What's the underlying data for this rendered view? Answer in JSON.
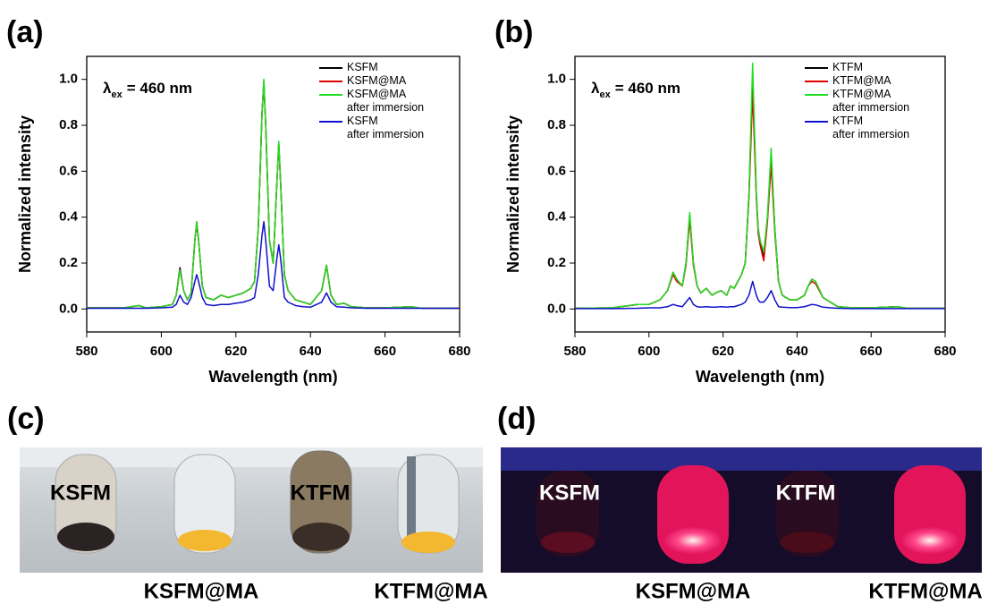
{
  "chart_data": [
    {
      "type": "line",
      "panel": "(a)",
      "x_label": "Wavelength (nm)",
      "y_label": "Normalized intensity",
      "annotation": {
        "symbol": "λ",
        "subscript": "ex",
        "text": "= 460 nm"
      },
      "legend": "upper right",
      "xlim": [
        580,
        680
      ],
      "ylim": [
        -0.1,
        1.1
      ],
      "xticks": [
        580,
        600,
        620,
        640,
        660,
        680
      ],
      "yticks": [
        {
          "value": 0,
          "label": "0.0"
        },
        0.2,
        0.4,
        0.6,
        0.8,
        {
          "value": 1,
          "label": "1.0"
        }
      ],
      "x": [
        580,
        590,
        594,
        596,
        600,
        603,
        604,
        605,
        606,
        607,
        608,
        609,
        609.5,
        610,
        611,
        612,
        614,
        616,
        618,
        620,
        622,
        624,
        625,
        626,
        627,
        627.5,
        628,
        629,
        630,
        631,
        631.5,
        632,
        633,
        634,
        636,
        638,
        640,
        643,
        644.3,
        645.5,
        647,
        649,
        651,
        655,
        660,
        667,
        670,
        680
      ],
      "series": [
        {
          "name": "KSFM",
          "color": "#000000",
          "values": [
            0.005,
            0.005,
            0.015,
            0.005,
            0.01,
            0.02,
            0.06,
            0.18,
            0.08,
            0.04,
            0.07,
            0.3,
            0.37,
            0.3,
            0.1,
            0.05,
            0.04,
            0.06,
            0.05,
            0.06,
            0.07,
            0.09,
            0.12,
            0.35,
            0.85,
            0.99,
            0.8,
            0.3,
            0.2,
            0.55,
            0.72,
            0.55,
            0.15,
            0.08,
            0.04,
            0.03,
            0.02,
            0.08,
            0.19,
            0.06,
            0.02,
            0.025,
            0.01,
            0.005,
            0.005,
            0.01,
            0.003,
            0.003
          ]
        },
        {
          "name": "KSFM@MA",
          "color": "#e00000",
          "values": [
            0.005,
            0.005,
            0.015,
            0.005,
            0.01,
            0.02,
            0.06,
            0.17,
            0.08,
            0.04,
            0.07,
            0.3,
            0.38,
            0.3,
            0.1,
            0.05,
            0.04,
            0.06,
            0.05,
            0.06,
            0.07,
            0.09,
            0.12,
            0.35,
            0.85,
            0.99,
            0.8,
            0.3,
            0.2,
            0.55,
            0.72,
            0.55,
            0.15,
            0.08,
            0.04,
            0.03,
            0.02,
            0.08,
            0.19,
            0.06,
            0.02,
            0.025,
            0.01,
            0.005,
            0.005,
            0.01,
            0.003,
            0.003
          ]
        },
        {
          "name": "KSFM@MA\nafter immersion",
          "color": "#22dd22",
          "values": [
            0.005,
            0.005,
            0.015,
            0.005,
            0.01,
            0.02,
            0.06,
            0.17,
            0.08,
            0.04,
            0.07,
            0.3,
            0.38,
            0.3,
            0.1,
            0.05,
            0.04,
            0.06,
            0.05,
            0.06,
            0.07,
            0.09,
            0.12,
            0.35,
            0.85,
            1.0,
            0.8,
            0.3,
            0.2,
            0.55,
            0.73,
            0.55,
            0.15,
            0.08,
            0.04,
            0.03,
            0.02,
            0.08,
            0.19,
            0.06,
            0.02,
            0.025,
            0.01,
            0.005,
            0.005,
            0.01,
            0.003,
            0.003
          ]
        },
        {
          "name": "KSFM\nafter immersion",
          "color": "#1010cc",
          "values": [
            0.003,
            0.003,
            0.003,
            0.003,
            0.005,
            0.008,
            0.02,
            0.06,
            0.03,
            0.02,
            0.05,
            0.12,
            0.15,
            0.12,
            0.05,
            0.02,
            0.015,
            0.02,
            0.02,
            0.025,
            0.03,
            0.04,
            0.05,
            0.15,
            0.32,
            0.38,
            0.3,
            0.1,
            0.08,
            0.22,
            0.28,
            0.22,
            0.05,
            0.03,
            0.015,
            0.01,
            0.008,
            0.03,
            0.07,
            0.03,
            0.01,
            0.008,
            0.005,
            0.003,
            0.003,
            0.003,
            0.003,
            0.003
          ]
        }
      ]
    },
    {
      "type": "line",
      "panel": "(b)",
      "x_label": "Wavelength (nm)",
      "y_label": "Normalized intensity",
      "annotation": {
        "symbol": "λ",
        "subscript": "ex",
        "text": "= 460 nm"
      },
      "legend": "upper right",
      "xlim": [
        580,
        680
      ],
      "ylim": [
        -0.1,
        1.1
      ],
      "xticks": [
        580,
        600,
        620,
        640,
        660,
        680
      ],
      "yticks": [
        {
          "value": 0,
          "label": "0.0"
        },
        0.2,
        0.4,
        0.6,
        0.8,
        {
          "value": 1,
          "label": "1.0"
        }
      ],
      "x": [
        580,
        590,
        597,
        600,
        603,
        605,
        606.5,
        607.5,
        609,
        610,
        611,
        612,
        613,
        614,
        615.5,
        617,
        618,
        619.5,
        621,
        622,
        623,
        624,
        625,
        626,
        627,
        628,
        629,
        629.5,
        630,
        631,
        632,
        633,
        634,
        635,
        636,
        638,
        640,
        642,
        643,
        644,
        645,
        647,
        649,
        651,
        655,
        660,
        667,
        670,
        680
      ],
      "series": [
        {
          "name": "KTFM",
          "color": "#000000",
          "values": [
            0.003,
            0.005,
            0.02,
            0.02,
            0.04,
            0.08,
            0.16,
            0.13,
            0.1,
            0.2,
            0.41,
            0.2,
            0.1,
            0.07,
            0.09,
            0.06,
            0.07,
            0.08,
            0.06,
            0.1,
            0.09,
            0.12,
            0.15,
            0.2,
            0.5,
            1.0,
            0.5,
            0.35,
            0.3,
            0.22,
            0.4,
            0.66,
            0.35,
            0.12,
            0.06,
            0.04,
            0.04,
            0.06,
            0.1,
            0.13,
            0.12,
            0.05,
            0.03,
            0.01,
            0.005,
            0.005,
            0.01,
            0.003,
            0.003
          ]
        },
        {
          "name": "KTFM@MA",
          "color": "#e00000",
          "values": [
            0.003,
            0.005,
            0.02,
            0.02,
            0.04,
            0.08,
            0.15,
            0.12,
            0.1,
            0.19,
            0.39,
            0.19,
            0.1,
            0.07,
            0.09,
            0.06,
            0.07,
            0.08,
            0.06,
            0.1,
            0.09,
            0.12,
            0.15,
            0.2,
            0.48,
            0.94,
            0.48,
            0.33,
            0.28,
            0.21,
            0.38,
            0.63,
            0.33,
            0.12,
            0.06,
            0.04,
            0.04,
            0.06,
            0.1,
            0.12,
            0.11,
            0.05,
            0.03,
            0.01,
            0.005,
            0.005,
            0.01,
            0.003,
            0.003
          ]
        },
        {
          "name": "KTFM@MA\nafter immersion",
          "color": "#22dd22",
          "values": [
            0.003,
            0.005,
            0.02,
            0.02,
            0.04,
            0.08,
            0.16,
            0.13,
            0.1,
            0.2,
            0.42,
            0.2,
            0.1,
            0.07,
            0.09,
            0.06,
            0.07,
            0.08,
            0.06,
            0.1,
            0.09,
            0.12,
            0.15,
            0.2,
            0.5,
            1.07,
            0.5,
            0.35,
            0.3,
            0.25,
            0.4,
            0.7,
            0.35,
            0.12,
            0.06,
            0.04,
            0.04,
            0.06,
            0.1,
            0.13,
            0.12,
            0.05,
            0.03,
            0.01,
            0.005,
            0.005,
            0.01,
            0.003,
            0.003
          ]
        },
        {
          "name": "KTFM\nafter immersion",
          "color": "#1010cc",
          "values": [
            0.002,
            0.002,
            0.003,
            0.005,
            0.005,
            0.01,
            0.02,
            0.015,
            0.01,
            0.03,
            0.05,
            0.02,
            0.01,
            0.008,
            0.01,
            0.008,
            0.008,
            0.01,
            0.008,
            0.01,
            0.01,
            0.015,
            0.02,
            0.03,
            0.06,
            0.12,
            0.06,
            0.04,
            0.03,
            0.03,
            0.05,
            0.08,
            0.04,
            0.01,
            0.008,
            0.006,
            0.006,
            0.01,
            0.015,
            0.02,
            0.018,
            0.008,
            0.005,
            0.003,
            0.002,
            0.002,
            0.002,
            0.002,
            0.002
          ]
        }
      ]
    }
  ],
  "photos": [
    {
      "panel": "(c)",
      "labels": [
        "KSFM",
        "KSFM@MA",
        "KTFM",
        "KTFM@MA"
      ]
    },
    {
      "panel": "(d)",
      "labels": [
        "KSFM",
        "KSFM@MA",
        "KTFM",
        "KTFM@MA"
      ]
    }
  ]
}
